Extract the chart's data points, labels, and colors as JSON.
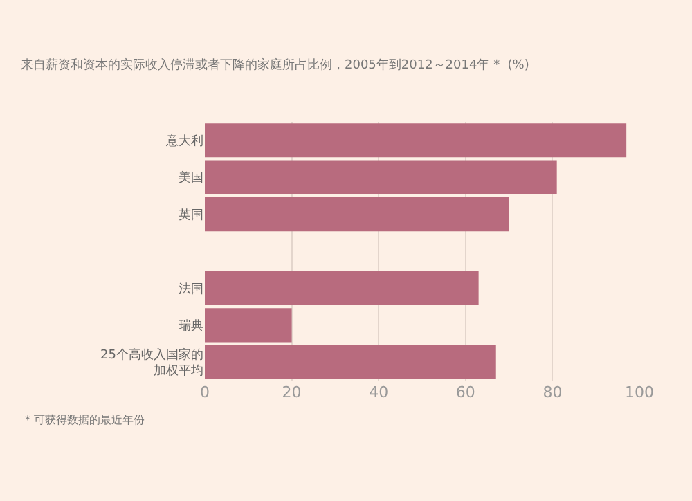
{
  "chart_data": {
    "type": "bar",
    "orientation": "horizontal",
    "title": "来自薪资和资本的实际收入停滞或者下降的家庭所占比例，2005年到2012～2014年 *  (%)",
    "categories": [
      "意大利",
      "美国",
      "英国",
      null,
      "法国",
      "瑞典",
      "25个高收入国家的加权平均"
    ],
    "values": [
      97,
      81,
      70,
      null,
      63,
      20,
      67
    ],
    "color": "#b86b7e",
    "xlim": [
      0,
      100
    ],
    "xticks": [
      0,
      20,
      40,
      60,
      80,
      100
    ],
    "grid": "x",
    "annotations": [
      "* 可获得数据的最近年份"
    ]
  }
}
